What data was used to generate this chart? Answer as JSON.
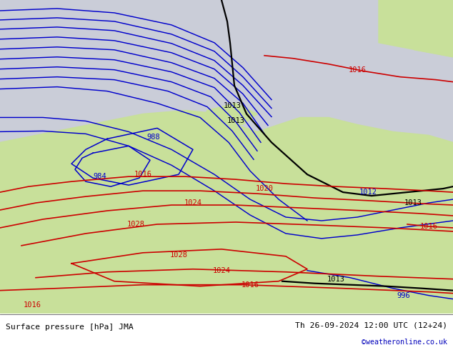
{
  "title_left": "Surface pressure [hPa] JMA",
  "title_right": "Th 26-09-2024 12:00 UTC (12+24)",
  "credit": "©weatheronline.co.uk",
  "ocean_color": "#cacdd8",
  "land_color": "#c8e09a",
  "land_dark": "#b0c880",
  "gray_land": "#b8b8b8",
  "blue": "#0000cc",
  "red": "#cc0000",
  "black": "#000000",
  "white": "#ffffff"
}
